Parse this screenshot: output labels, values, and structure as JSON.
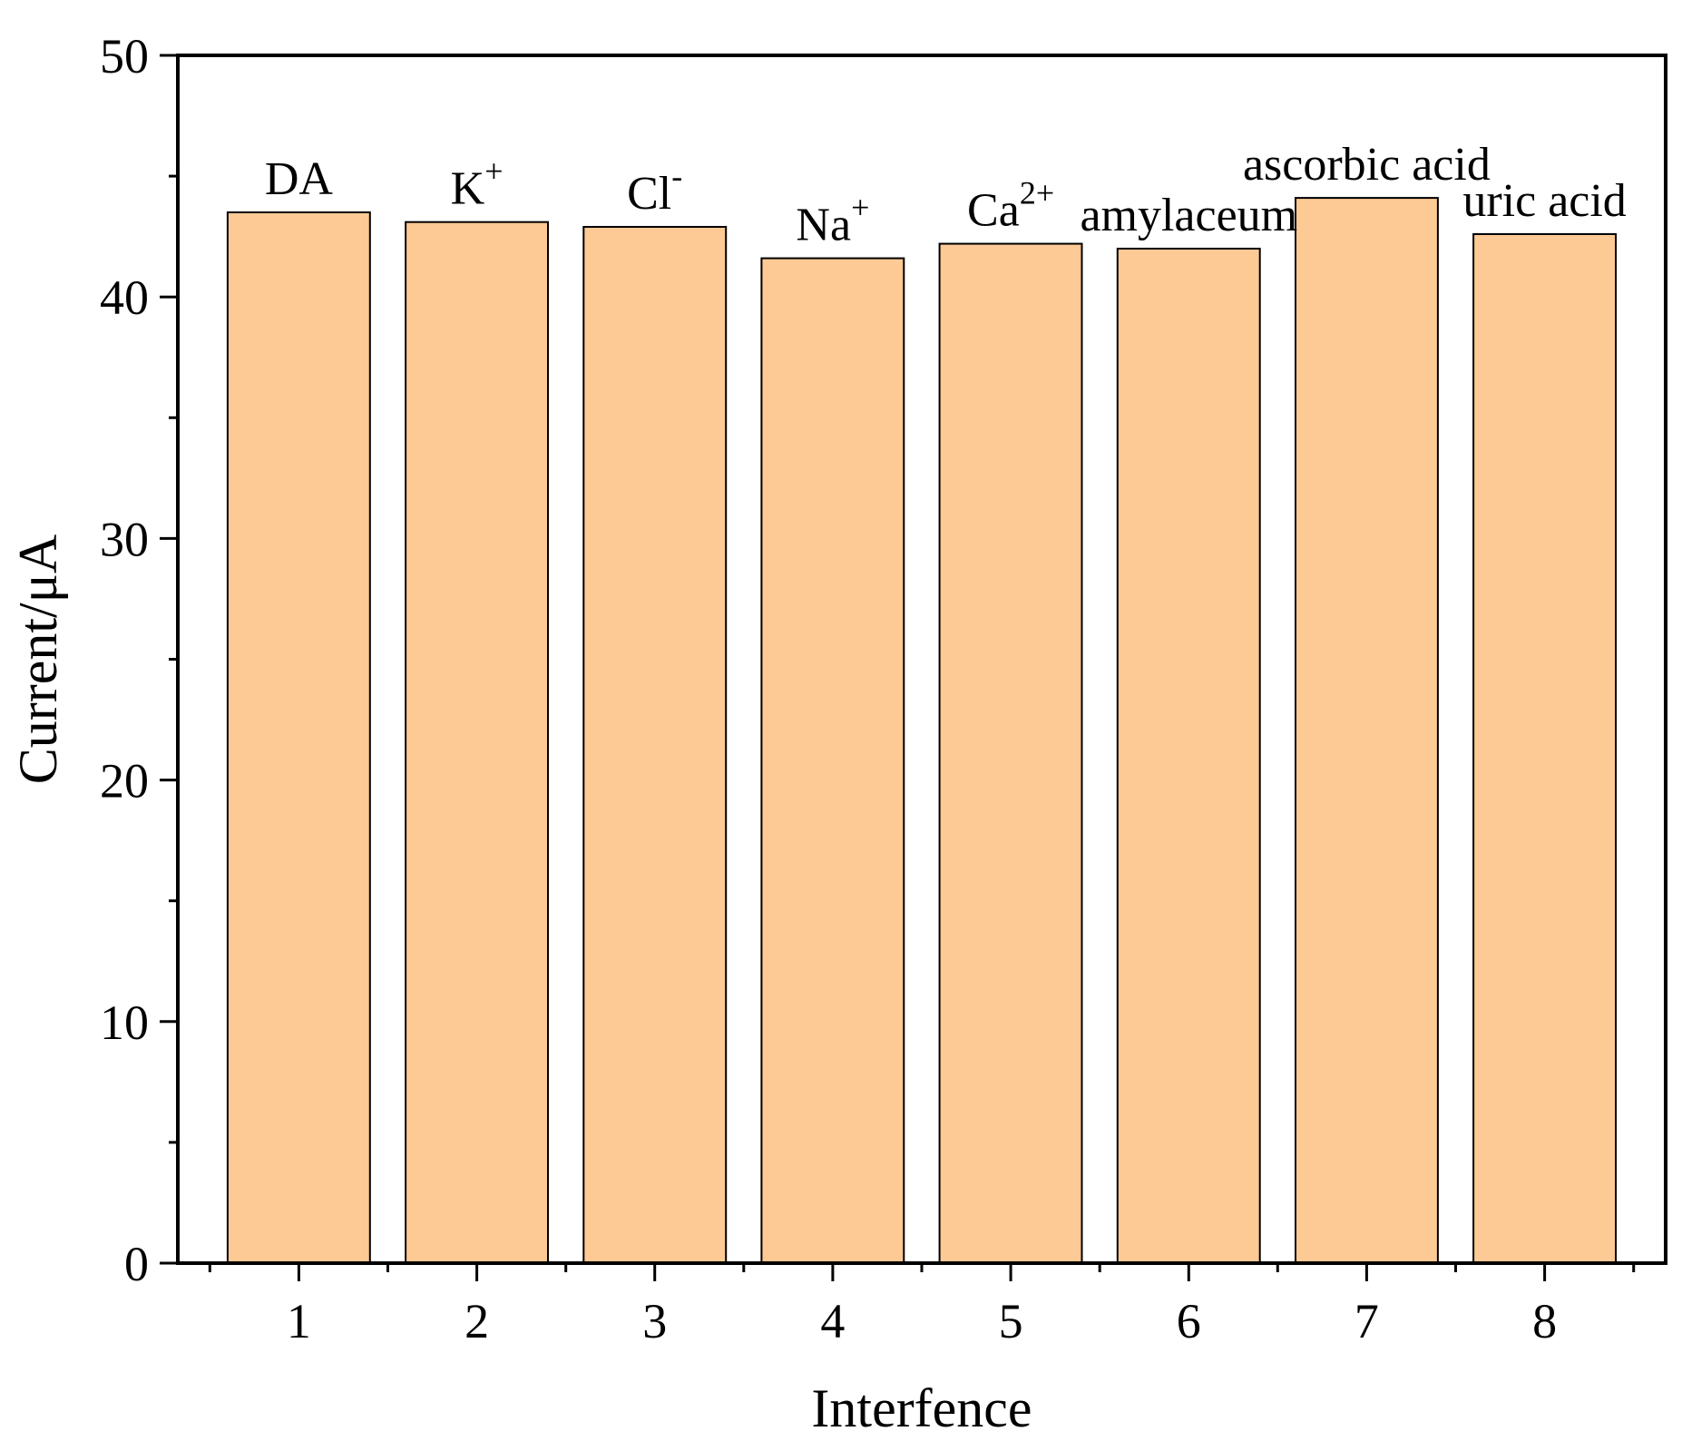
{
  "chart_data": {
    "type": "bar",
    "title": "",
    "xlabel": "Interfence",
    "ylabel": "Current/μA",
    "categories": [
      "1",
      "2",
      "3",
      "4",
      "5",
      "6",
      "7",
      "8"
    ],
    "values": [
      43.5,
      43.1,
      42.9,
      41.6,
      42.2,
      42.0,
      44.1,
      42.6
    ],
    "bar_labels": [
      {
        "base": "DA",
        "sup": ""
      },
      {
        "base": "K",
        "sup": "+"
      },
      {
        "base": "Cl",
        "sup": "-"
      },
      {
        "base": "Na",
        "sup": "+"
      },
      {
        "base": "Ca",
        "sup": "2+"
      },
      {
        "base": "amylaceum",
        "sup": ""
      },
      {
        "base": "ascorbic acid",
        "sup": ""
      },
      {
        "base": "uric acid",
        "sup": ""
      }
    ],
    "ylim": [
      0,
      50
    ],
    "y_major_ticks": [
      "0",
      "10",
      "20",
      "30",
      "40",
      "50"
    ],
    "grid": false,
    "colors": {
      "bar_fill": "#FDC994",
      "bar_stroke": "#000000",
      "axis": "#000000"
    }
  }
}
